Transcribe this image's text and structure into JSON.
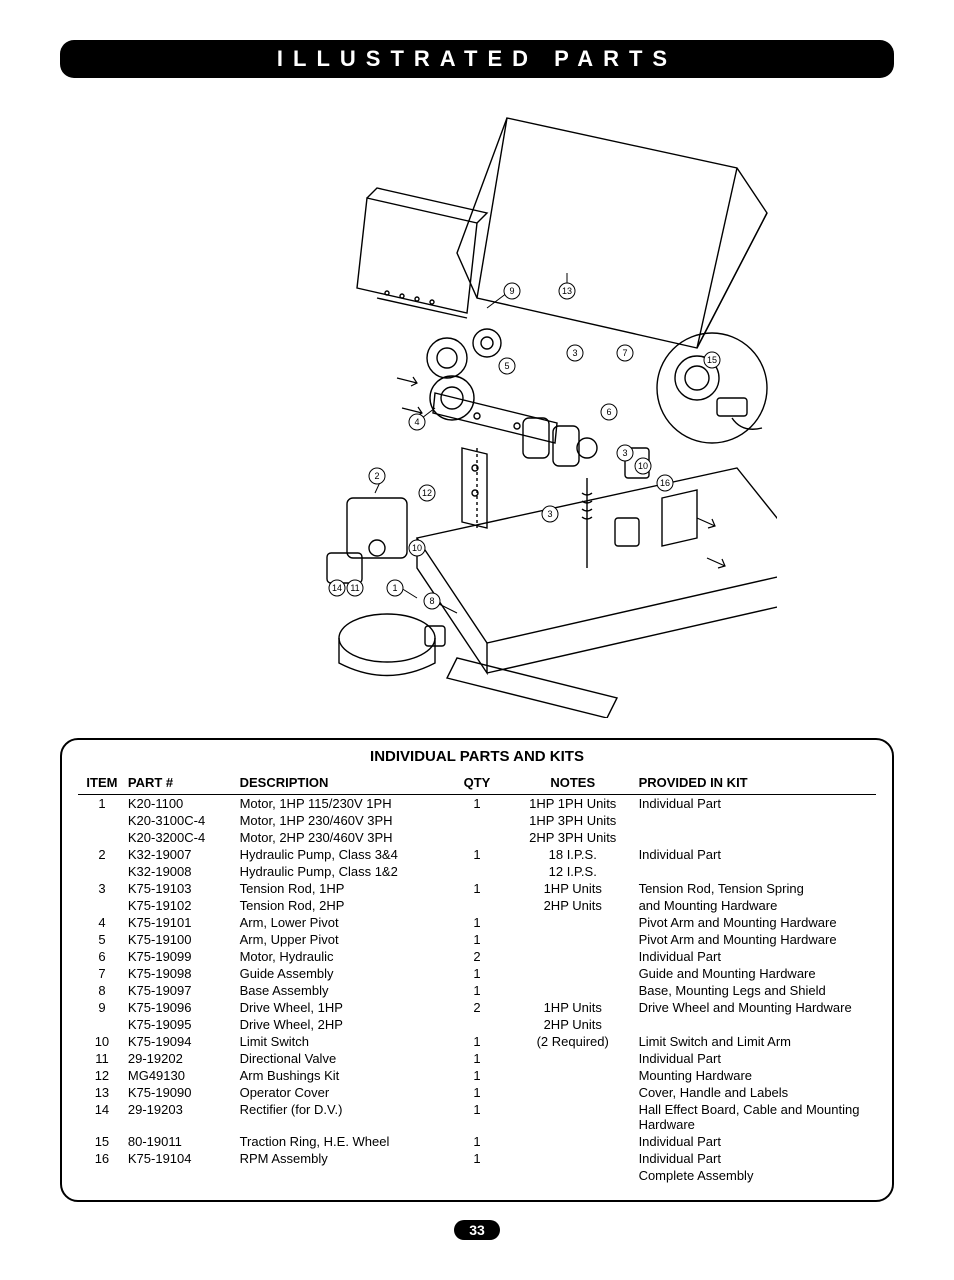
{
  "header": {
    "title": "ILLUSTRATED PARTS"
  },
  "page_number": "33",
  "diagram": {
    "callouts": [
      "1",
      "2",
      "3",
      "4",
      "5",
      "6",
      "7",
      "8",
      "9",
      "10",
      "11",
      "12",
      "13",
      "14",
      "15",
      "16"
    ]
  },
  "parts_table": {
    "title": "INDIVIDUAL PARTS AND KITS",
    "columns": {
      "item": "ITEM",
      "part": "PART #",
      "desc": "DESCRIPTION",
      "qty": "QTY",
      "notes": "NOTES",
      "kit": "PROVIDED IN KIT"
    },
    "rows": [
      {
        "item": "1",
        "part": "K20-1100",
        "desc": "Motor, 1HP 115/230V 1PH",
        "qty": "1",
        "notes": "1HP 1PH Units",
        "kit": "Individual Part"
      },
      {
        "item": "",
        "part": "K20-3100C-4",
        "desc": "Motor, 1HP 230/460V 3PH",
        "qty": "",
        "notes": "1HP 3PH Units",
        "kit": ""
      },
      {
        "item": "",
        "part": "K20-3200C-4",
        "desc": "Motor, 2HP 230/460V 3PH",
        "qty": "",
        "notes": "2HP 3PH Units",
        "kit": ""
      },
      {
        "item": "2",
        "part": "K32-19007",
        "desc": "Hydraulic Pump, Class 3&4",
        "qty": "1",
        "notes": "18 I.P.S.",
        "kit": "Individual Part"
      },
      {
        "item": "",
        "part": "K32-19008",
        "desc": "Hydraulic Pump, Class 1&2",
        "qty": "",
        "notes": "12 I.P.S.",
        "kit": ""
      },
      {
        "item": "3",
        "part": "K75-19103",
        "desc": "Tension Rod, 1HP",
        "qty": "1",
        "notes": "1HP Units",
        "kit": "Tension Rod, Tension Spring"
      },
      {
        "item": "",
        "part": "K75-19102",
        "desc": "Tension Rod, 2HP",
        "qty": "",
        "notes": "2HP Units",
        "kit": "and Mounting Hardware"
      },
      {
        "item": "4",
        "part": "K75-19101",
        "desc": "Arm, Lower Pivot",
        "qty": "1",
        "notes": "",
        "kit": "Pivot Arm and Mounting Hardware"
      },
      {
        "item": "5",
        "part": "K75-19100",
        "desc": "Arm, Upper Pivot",
        "qty": "1",
        "notes": "",
        "kit": "Pivot Arm and Mounting Hardware"
      },
      {
        "item": "6",
        "part": "K75-19099",
        "desc": "Motor, Hydraulic",
        "qty": "2",
        "notes": "",
        "kit": "Individual Part"
      },
      {
        "item": "7",
        "part": "K75-19098",
        "desc": "Guide Assembly",
        "qty": "1",
        "notes": "",
        "kit": "Guide and Mounting Hardware"
      },
      {
        "item": "8",
        "part": "K75-19097",
        "desc": "Base Assembly",
        "qty": "1",
        "notes": "",
        "kit": "Base, Mounting Legs and Shield"
      },
      {
        "item": "9",
        "part": "K75-19096",
        "desc": "Drive Wheel, 1HP",
        "qty": "2",
        "notes": "1HP Units",
        "kit": "Drive Wheel and Mounting Hardware"
      },
      {
        "item": "",
        "part": "K75-19095",
        "desc": "Drive Wheel, 2HP",
        "qty": "",
        "notes": "2HP Units",
        "kit": ""
      },
      {
        "item": "10",
        "part": "K75-19094",
        "desc": "Limit Switch",
        "qty": "1",
        "notes": "(2 Required)",
        "kit": "Limit Switch and Limit Arm"
      },
      {
        "item": "11",
        "part": "29-19202",
        "desc": "Directional Valve",
        "qty": "1",
        "notes": "",
        "kit": "Individual Part"
      },
      {
        "item": "12",
        "part": "MG49130",
        "desc": "Arm Bushings Kit",
        "qty": "1",
        "notes": "",
        "kit": "Mounting Hardware"
      },
      {
        "item": "13",
        "part": "K75-19090",
        "desc": "Operator Cover",
        "qty": "1",
        "notes": "",
        "kit": "Cover, Handle and Labels"
      },
      {
        "item": "14",
        "part": "29-19203",
        "desc": "Rectifier (for D.V.)",
        "qty": "1",
        "notes": "",
        "kit": "Hall Effect Board, Cable and Mounting Hardware"
      },
      {
        "item": "15",
        "part": "80-19011",
        "desc": "Traction Ring, H.E. Wheel",
        "qty": "1",
        "notes": "",
        "kit": "Individual Part"
      },
      {
        "item": "16",
        "part": "K75-19104",
        "desc": "RPM Assembly",
        "qty": "1",
        "notes": "",
        "kit": "Individual Part"
      },
      {
        "item": "",
        "part": "",
        "desc": "",
        "qty": "",
        "notes": "",
        "kit": "Complete Assembly"
      }
    ]
  }
}
